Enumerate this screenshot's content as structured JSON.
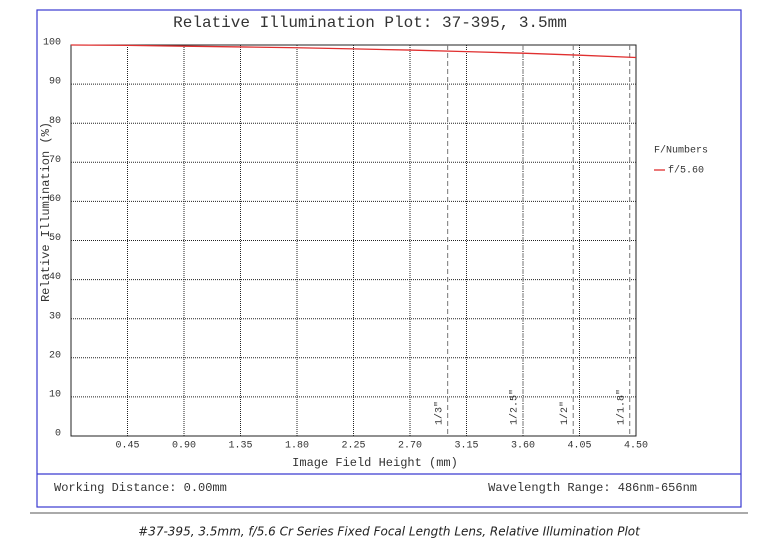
{
  "chart_data": {
    "type": "line",
    "title": "Relative Illumination Plot: 37-395, 3.5mm",
    "xlabel": "Image Field Height (mm)",
    "ylabel": "Relative Illumination (%)",
    "x": [
      0,
      0.45,
      0.9,
      1.35,
      1.8,
      2.25,
      2.7,
      3.15,
      3.6,
      4.05,
      4.5
    ],
    "series": [
      {
        "name": "f/5.60",
        "color": "#e03030",
        "values": [
          100,
          99.9,
          99.7,
          99.5,
          99.3,
          99.0,
          98.7,
          98.3,
          97.9,
          97.4,
          96.8
        ]
      }
    ],
    "legend_title": "F/Numbers",
    "legend": "right",
    "xlim": [
      0,
      4.5
    ],
    "ylim": [
      0,
      100
    ],
    "xticks": [
      0.45,
      {
        "value": 0.9,
        "label": "0.90"
      },
      1.35,
      {
        "value": 1.8,
        "label": "1.80"
      },
      2.25,
      {
        "value": 2.7,
        "label": "2.70"
      },
      3.15,
      {
        "value": 3.6,
        "label": "3.60"
      },
      4.05,
      {
        "value": 4.5,
        "label": "4.50"
      }
    ],
    "yticks": [
      0,
      10,
      20,
      30,
      40,
      50,
      60,
      70,
      80,
      90,
      100
    ],
    "grid": true,
    "sensor_lines": [
      {
        "label": "1/3\"",
        "x": 3.0
      },
      {
        "label": "1/2.5\"",
        "x": 3.6
      },
      {
        "label": "1/2\"",
        "x": 4.0
      },
      {
        "label": "1/1.8\"",
        "x": 4.45
      }
    ]
  },
  "footer": {
    "working_distance": "Working Distance: 0.00mm",
    "wavelength_range": "Wavelength Range: 486nm-656nm"
  },
  "caption": "#37-395, 3.5mm, f/5.6 Cr Series Fixed Focal Length Lens, Relative Illumination Plot"
}
